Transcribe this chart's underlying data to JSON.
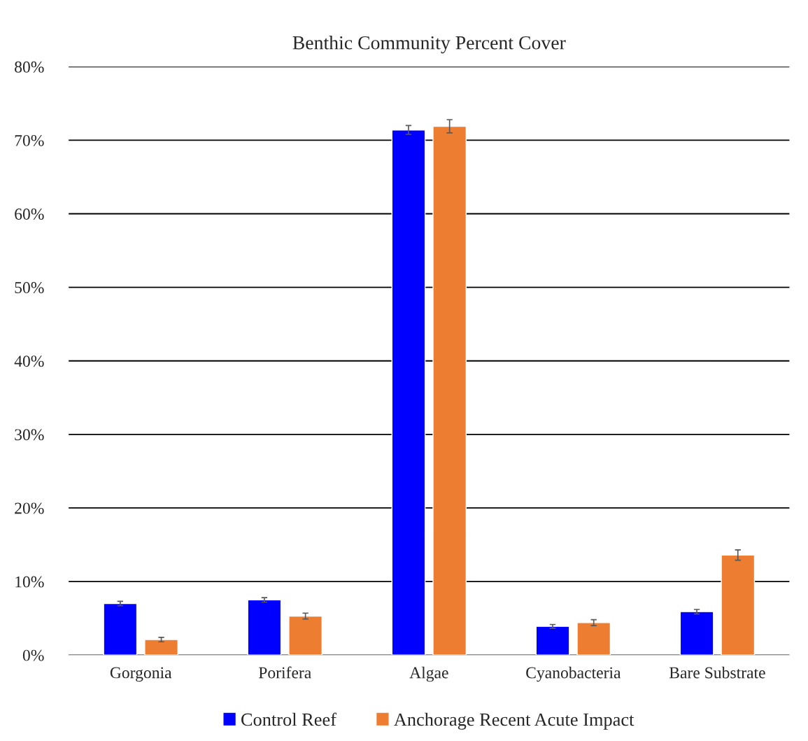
{
  "chart_data": {
    "type": "bar",
    "title": "Benthic Community Percent Cover",
    "categories": [
      "Gorgonia",
      "Porifera",
      "Algae",
      "Cyanobacteria",
      "Bare Substrate"
    ],
    "series": [
      {
        "name": "Control Reef",
        "color": "#0000ff",
        "values": [
          7.0,
          7.5,
          71.4,
          3.9,
          5.9
        ],
        "errors": [
          0.3,
          0.3,
          0.6,
          0.25,
          0.3
        ]
      },
      {
        "name": "Anchorage Recent Acute Impact",
        "color": "#ed7d31",
        "values": [
          2.1,
          5.3,
          71.9,
          4.4,
          13.6
        ],
        "errors": [
          0.3,
          0.4,
          0.9,
          0.4,
          0.7
        ]
      }
    ],
    "ylim": [
      0,
      80
    ],
    "yticks": [
      {
        "value": 0,
        "label": "0%"
      },
      {
        "value": 10,
        "label": "10%"
      },
      {
        "value": 20,
        "label": "20%"
      },
      {
        "value": 30,
        "label": "30%"
      },
      {
        "value": 40,
        "label": "40%"
      },
      {
        "value": 50,
        "label": "50%"
      },
      {
        "value": 60,
        "label": "60%"
      },
      {
        "value": 70,
        "label": "70%"
      },
      {
        "value": 80,
        "label": "80%"
      }
    ],
    "grid": "y",
    "legend": "bottom"
  }
}
